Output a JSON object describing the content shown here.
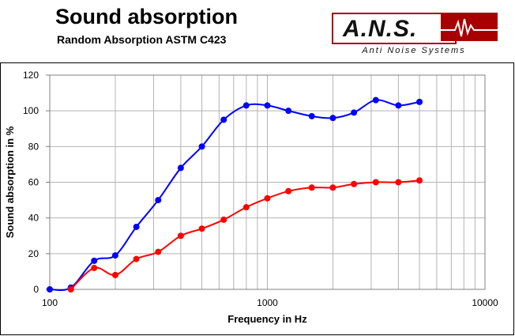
{
  "header": {
    "title": "Sound absorption",
    "subtitle": "Random Absorption ASTM C423"
  },
  "logo": {
    "text": "A.N.S.",
    "tagline": "Anti Noise Systems",
    "color": "#a80000"
  },
  "chart_data": {
    "type": "line",
    "xlabel": "Frequency in Hz",
    "ylabel": "Sound absorption in %",
    "xscale": "log",
    "xlim": [
      100,
      10000
    ],
    "ylim": [
      0,
      120
    ],
    "x_ticks": [
      100,
      1000,
      10000
    ],
    "x_tick_labels": [
      "100",
      "1000",
      "10000"
    ],
    "y_ticks": [
      0,
      20,
      40,
      60,
      80,
      100,
      120
    ],
    "y_tick_labels": [
      "0",
      "20",
      "40",
      "60",
      "80",
      "100",
      "120"
    ],
    "grid": true,
    "legend": "none",
    "series": [
      {
        "color": "#0000ff",
        "x": [
          100,
          125,
          160,
          200,
          250,
          315,
          400,
          500,
          630,
          800,
          1000,
          1250,
          1600,
          2000,
          2500,
          3150,
          4000,
          5000
        ],
        "values": [
          0,
          1,
          16,
          19,
          35,
          50,
          68,
          80,
          95,
          103,
          103,
          100,
          97,
          96,
          99,
          106,
          103,
          105
        ]
      },
      {
        "color": "#ff0000",
        "x": [
          125,
          160,
          200,
          250,
          315,
          400,
          500,
          630,
          800,
          1000,
          1250,
          1600,
          2000,
          2500,
          3150,
          4000,
          5000
        ],
        "values": [
          0,
          12,
          8,
          17,
          21,
          30,
          34,
          39,
          46,
          51,
          55,
          57,
          57,
          59,
          60,
          60,
          61
        ]
      }
    ]
  }
}
